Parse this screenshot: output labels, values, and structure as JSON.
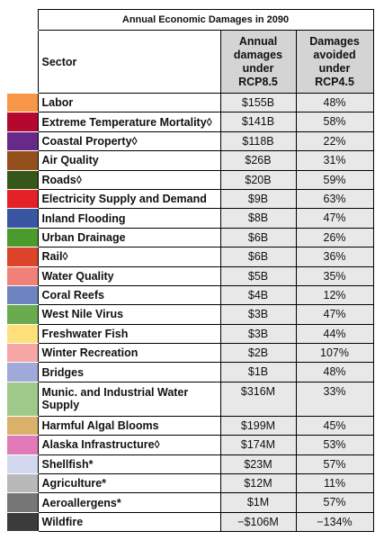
{
  "table": {
    "title": "Annual Economic Damages in 2090",
    "headers": [
      "Sector",
      "Annual damages under RCP8.5",
      "Damages avoided under RCP4.5"
    ],
    "rows": [
      {
        "color": "#f79646",
        "sector": "Labor",
        "damages": "$155B",
        "avoided": "48%"
      },
      {
        "color": "#b5082f",
        "sector": "Extreme Temperature Mortality◊",
        "damages": "$141B",
        "avoided": "58%"
      },
      {
        "color": "#682a88",
        "sector": "Coastal Property◊",
        "damages": "$118B",
        "avoided": "22%"
      },
      {
        "color": "#93501c",
        "sector": "Air Quality",
        "damages": "$26B",
        "avoided": "31%"
      },
      {
        "color": "#375619",
        "sector": "Roads◊",
        "damages": "$20B",
        "avoided": "59%"
      },
      {
        "color": "#e32126",
        "sector": "Electricity Supply and Demand",
        "damages": "$9B",
        "avoided": "63%"
      },
      {
        "color": "#3a55a2",
        "sector": "Inland Flooding",
        "damages": "$8B",
        "avoided": "47%"
      },
      {
        "color": "#4a9b2c",
        "sector": "Urban Drainage",
        "damages": "$6B",
        "avoided": "26%"
      },
      {
        "color": "#dc432b",
        "sector": "Rail◊",
        "damages": "$6B",
        "avoided": "36%"
      },
      {
        "color": "#f08078",
        "sector": "Water Quality",
        "damages": "$5B",
        "avoided": "35%"
      },
      {
        "color": "#6e84c0",
        "sector": "Coral Reefs",
        "damages": "$4B",
        "avoided": "12%"
      },
      {
        "color": "#6aab50",
        "sector": "West Nile Virus",
        "damages": "$3B",
        "avoided": "47%"
      },
      {
        "color": "#fde07a",
        "sector": "Freshwater Fish",
        "damages": "$3B",
        "avoided": "44%"
      },
      {
        "color": "#f6a6a4",
        "sector": "Winter Recreation",
        "damages": "$2B",
        "avoided": "107%"
      },
      {
        "color": "#a1a9d8",
        "sector": "Bridges",
        "damages": "$1B",
        "avoided": "48%"
      },
      {
        "color": "#9ec98a",
        "sector": "Munic. and Industrial Water Supply",
        "damages": "$316M",
        "avoided": "33%"
      },
      {
        "color": "#d9b16a",
        "sector": "Harmful Algal Blooms",
        "damages": "$199M",
        "avoided": "45%"
      },
      {
        "color": "#e07ab8",
        "sector": "Alaska Infrastructure◊",
        "damages": "$174M",
        "avoided": "53%"
      },
      {
        "color": "#d2d9ee",
        "sector": "Shellfish*",
        "damages": "$23M",
        "avoided": "57%"
      },
      {
        "color": "#b9b9b9",
        "sector": "Agriculture*",
        "damages": "$12M",
        "avoided": "11%"
      },
      {
        "color": "#767676",
        "sector": "Aeroallergens*",
        "damages": "$1M",
        "avoided": "57%"
      },
      {
        "color": "#3b3b3b",
        "sector": "Wildfire",
        "damages": "−$106M",
        "avoided": "−134%"
      }
    ]
  }
}
